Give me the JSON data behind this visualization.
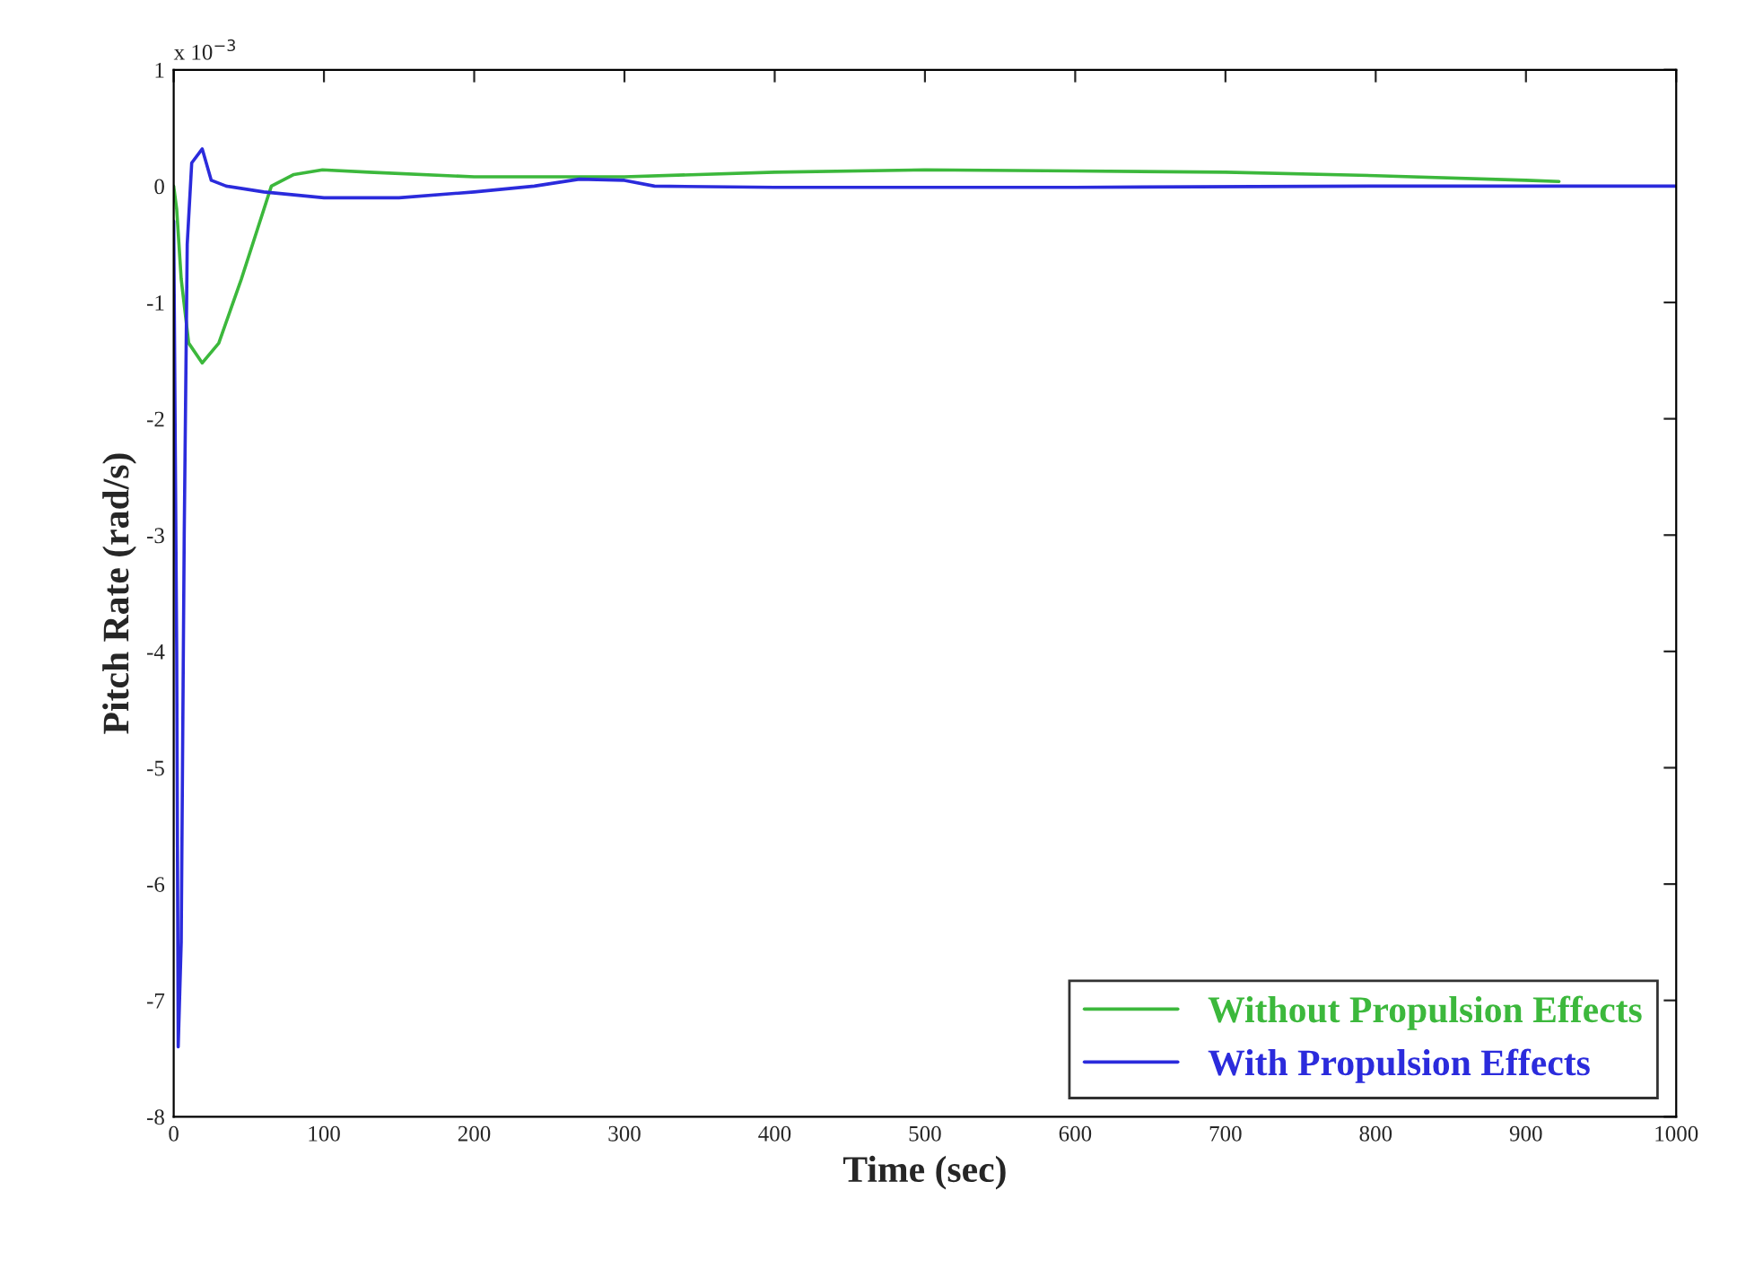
{
  "chart_data": {
    "type": "line",
    "xlabel": "Time (sec)",
    "ylabel": "Pitch Rate (rad/s)",
    "annotations": [
      "x 10$^{−3}$"
    ],
    "xlim": [
      0,
      1000
    ],
    "xticks": [
      0,
      100,
      200,
      300,
      400,
      500,
      600,
      700,
      800,
      900,
      1000
    ],
    "ylim": [
      -8,
      1
    ],
    "yticks": [
      -8,
      -7,
      -6,
      -5,
      -4,
      -3,
      -2,
      -1,
      0,
      1
    ],
    "grid": false,
    "legend": "bottom right",
    "line_style": "solid",
    "marker": "none",
    "series": [
      {
        "name": "Without Propulsion Effects",
        "color": "#3cb83c",
        "x": [
          0,
          2,
          5,
          10,
          19,
          30,
          45,
          65,
          80,
          99,
          130,
          200,
          300,
          400,
          500,
          600,
          700,
          800,
          900,
          922
        ],
        "values": [
          0,
          -0.2,
          -0.8,
          -1.35,
          -1.52,
          -1.35,
          -0.8,
          0,
          0.1,
          0.14,
          0.12,
          0.08,
          0.08,
          0.12,
          0.14,
          0.13,
          0.12,
          0.09,
          0.05,
          0.04
        ]
      },
      {
        "name": "With Propulsion Effects",
        "color": "#2b2bdc",
        "x": [
          0,
          2,
          3,
          5,
          7,
          9,
          12,
          19,
          25,
          35,
          60,
          100,
          150,
          200,
          240,
          270,
          300,
          320,
          400,
          600,
          800,
          1000
        ],
        "values": [
          -0.3,
          -4,
          -7.4,
          -6.5,
          -3,
          -0.5,
          0.2,
          0.32,
          0.05,
          0,
          -0.05,
          -0.1,
          -0.1,
          -0.05,
          0,
          0.06,
          0.05,
          0,
          -0.01,
          -0.01,
          0,
          0
        ]
      }
    ]
  }
}
